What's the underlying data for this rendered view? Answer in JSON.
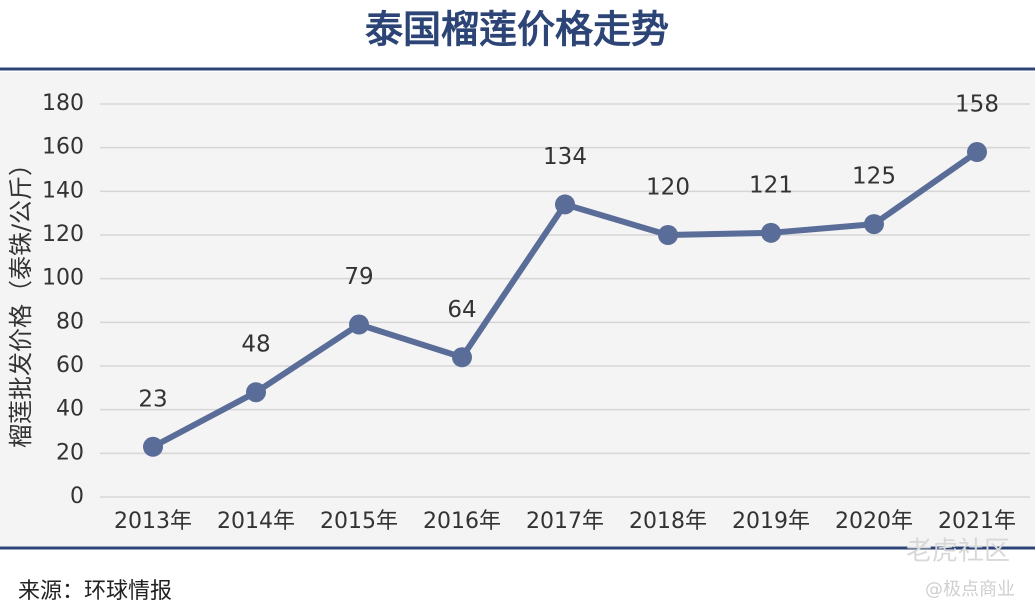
{
  "chart_data": {
    "type": "line",
    "title": "泰国榴莲价格走势",
    "y_label": "榴莲批发价格（泰铢/公斤）",
    "categories": [
      "2013年",
      "2014年",
      "2015年",
      "2016年",
      "2017年",
      "2018年",
      "2019年",
      "2020年",
      "2021年"
    ],
    "values": [
      23,
      48,
      79,
      64,
      134,
      120,
      121,
      125,
      158
    ],
    "color": "#5a6c98",
    "ylim": [
      0,
      180
    ],
    "yticks": [
      0,
      20,
      40,
      60,
      80,
      100,
      120,
      140,
      160,
      180
    ],
    "grid": true,
    "source": "来源：环球情报",
    "watermark": [
      "老虎社区",
      "@极点商业"
    ]
  }
}
